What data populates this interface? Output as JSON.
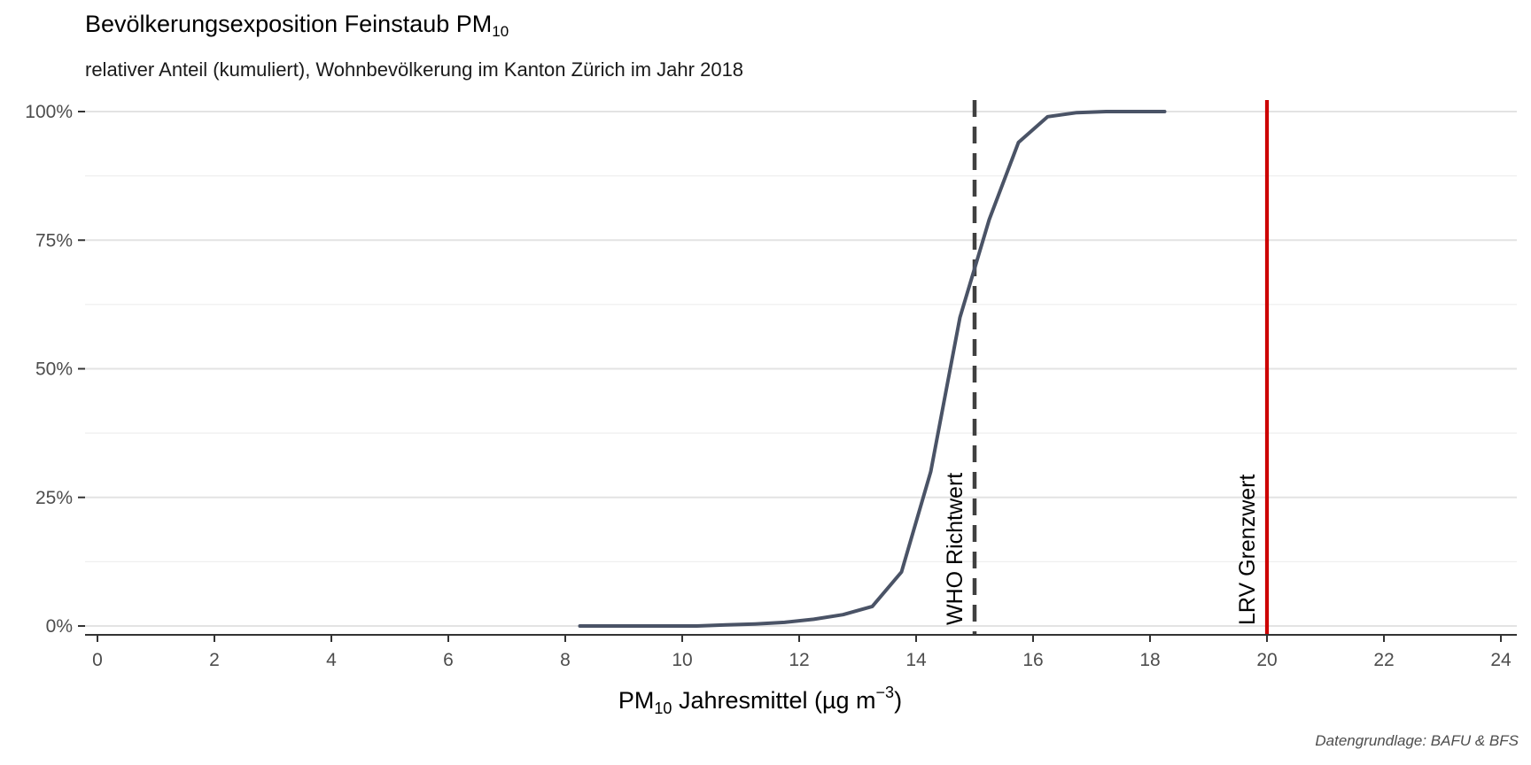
{
  "chart_data": {
    "type": "line",
    "title": "Bevölkerungsexposition Feinstaub PM",
    "title_sub": "10",
    "subtitle": "relativer Anteil (kumuliert), Wohnbevölkerung im Kanton Zürich im Jahr 2018",
    "xlabel": {
      "pm": "PM",
      "sub": "10",
      "rest": " Jahresmittel (µg m",
      "sup": "−3",
      "close": ")"
    },
    "caption": "Datengrundlage: BAFU & BFS",
    "xlim": [
      0,
      24
    ],
    "ylim": [
      0,
      1
    ],
    "x_ticks": [
      "0",
      "2",
      "4",
      "6",
      "8",
      "10",
      "12",
      "14",
      "16",
      "18",
      "20",
      "22",
      "24"
    ],
    "y_ticks": [
      "0%",
      "25%",
      "50%",
      "75%",
      "100%"
    ],
    "grid": true,
    "series": [
      {
        "color": "#4a5366",
        "x": [
          8.25,
          8.75,
          9.25,
          9.75,
          10.25,
          10.75,
          11.25,
          11.75,
          12.25,
          12.75,
          13.25,
          13.75,
          14.25,
          14.75,
          15.25,
          15.75,
          16.25,
          16.75,
          17.25,
          17.75,
          18.25
        ],
        "y": [
          0.0,
          0.0,
          0.0,
          0.0,
          0.0,
          0.002,
          0.004,
          0.007,
          0.013,
          0.022,
          0.038,
          0.105,
          0.3,
          0.6,
          0.79,
          0.94,
          0.99,
          0.998,
          1.0,
          1.0,
          1.0
        ]
      }
    ],
    "reference_lines": [
      {
        "x": 15,
        "label": "WHO Richtwert",
        "color": "#404040",
        "style": "dashed"
      },
      {
        "x": 20,
        "label": "LRV Grenzwert",
        "color": "#cc0000",
        "style": "solid"
      }
    ]
  }
}
